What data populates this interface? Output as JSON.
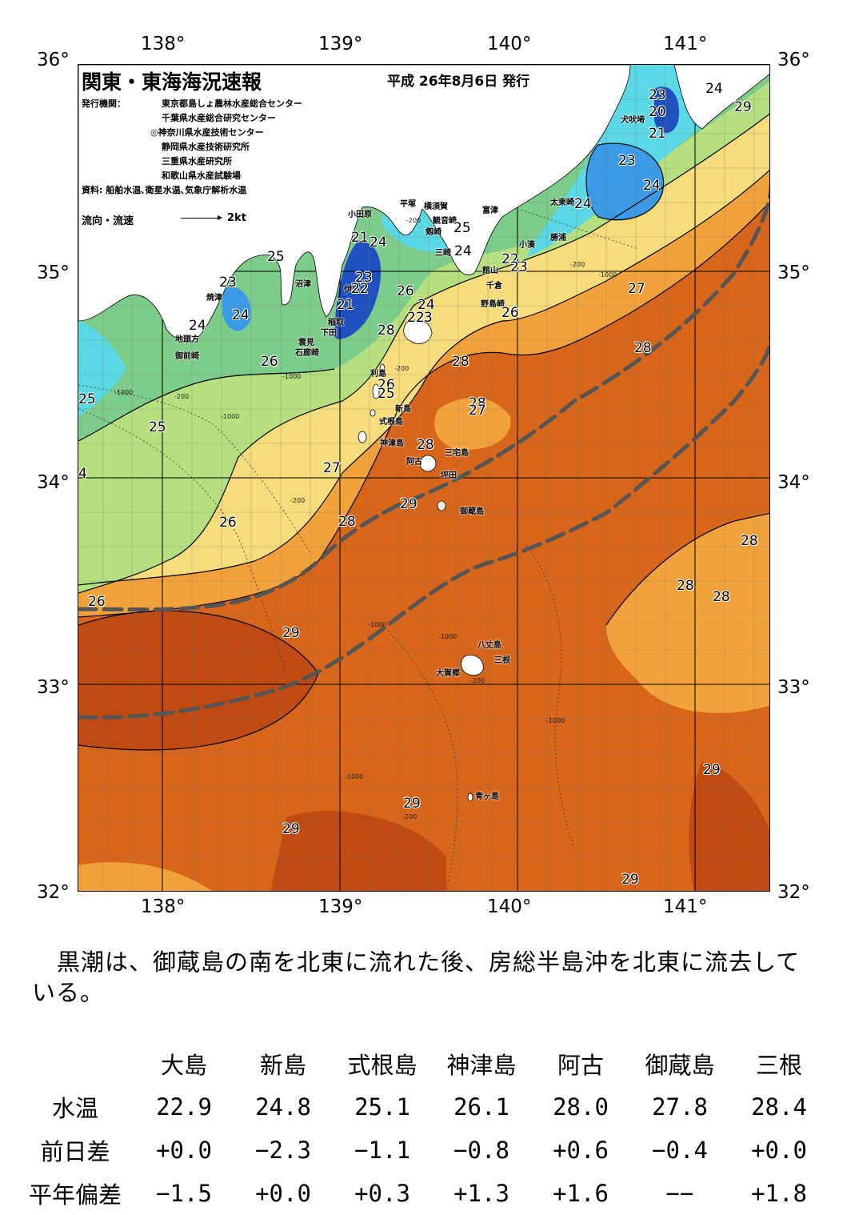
{
  "map": {
    "title": "関東・東海海況速報",
    "issue_date": "平成 26年8月6日 発行",
    "issuer_label": "発行機関：",
    "agencies": [
      "東京都島しょ農林水産総合センター",
      "千葉県水産総合研究センター",
      "◎神奈川県水産技術センター",
      "静岡県水産技術研究所",
      "三重県水産研究所",
      "和歌山県水産試験場"
    ],
    "source": "資料: 船舶水温､衛星水温､気象庁解析水温",
    "flow_label": "流向・流速",
    "flow_unit": "2kt",
    "lon_labels": [
      "138°",
      "139°",
      "140°",
      "141°"
    ],
    "lat_labels": [
      "36°",
      "35°",
      "34°",
      "33°",
      "32°"
    ],
    "place_names": [
      "犬吠埼",
      "太東崎",
      "勝浦",
      "小湊",
      "館山",
      "千倉",
      "野島崎",
      "富津",
      "横須賀",
      "観音崎",
      "平塚",
      "剱崎",
      "三崎",
      "小田原",
      "沼津",
      "伊東",
      "稲取",
      "下田",
      "雲見",
      "石廊崎",
      "焼津",
      "地頭方",
      "御前崎",
      "利島",
      "新島",
      "式根島",
      "神津島",
      "三宅島",
      "阿古",
      "坪田",
      "御蔵島",
      "八丈島",
      "三根",
      "大賀郷",
      "青ヶ島"
    ],
    "temp_labels": [
      "24",
      "23",
      "20",
      "21",
      "23",
      "24",
      "24",
      "25",
      "24",
      "22",
      "23",
      "27",
      "26",
      "28",
      "21",
      "24",
      "23",
      "22",
      "21",
      "25",
      "23",
      "24",
      "24",
      "26",
      "26",
      "24",
      "23",
      "22",
      "28",
      "26",
      "25",
      "28",
      "28",
      "27",
      "27",
      "28",
      "25",
      "25",
      "4",
      "26",
      "27",
      "28",
      "29",
      "26",
      "29",
      "28",
      "28",
      "28",
      "29",
      "29",
      "29",
      "29",
      "29"
    ],
    "depth_labels": [
      "-200",
      "-200",
      "-1000",
      "-200",
      "-1000",
      "-1000",
      "-200",
      "-200",
      "-1000",
      "-1000",
      "-1000",
      "-1000",
      "-1000",
      "-200",
      "-200"
    ]
  },
  "summary": "黒潮は、御蔵島の南を北東に流れた後、房総半島沖を北東に流去している。",
  "table": {
    "stations": [
      "大島",
      "新島",
      "式根島",
      "神津島",
      "阿古",
      "御蔵島",
      "三根"
    ],
    "rows": [
      {
        "label": "水温",
        "values": [
          "22.9",
          "24.8",
          "25.1",
          "26.1",
          "28.0",
          "27.8",
          "28.4"
        ]
      },
      {
        "label": "前日差",
        "values": [
          "+0.0",
          "−2.3",
          "−1.1",
          "−0.8",
          "+0.6",
          "−0.4",
          "+0.0"
        ]
      },
      {
        "label": "平年偏差",
        "values": [
          "−1.5",
          "+0.0",
          "+0.3",
          "+1.3",
          "+1.6",
          "−−",
          "+1.8"
        ]
      }
    ]
  },
  "colors": {
    "land": "#ffffff",
    "sea_29": "#bf4a12",
    "sea_28": "#d8661a",
    "sea_27": "#f2a23a",
    "sea_26": "#f6dc7a",
    "sea_25": "#b6e080",
    "sea_24": "#7ccc8a",
    "sea_23": "#5ad8e6",
    "sea_22": "#3a9ae6",
    "sea_21": "#2050c0",
    "kuroshio_axis": "#555555"
  }
}
